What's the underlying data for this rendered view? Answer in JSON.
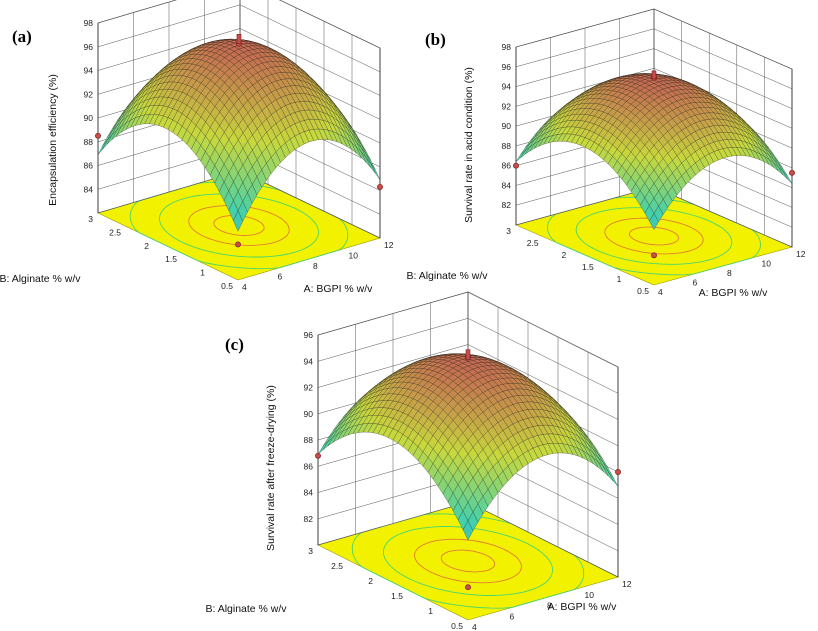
{
  "figure": {
    "description_free": true,
    "colors": {
      "floor": "#f2f200",
      "contour_outer": "#39d27a",
      "contour_inner": "#e0703a",
      "wall_grid": "#555555",
      "design_point": "#c94b4b",
      "surface_low": "#4a58d8",
      "surface_mid": "#3fd0b0",
      "surface_high": "#c46a52"
    }
  },
  "chart_data": [
    {
      "panel": "(a)",
      "type": "surface",
      "title": "",
      "zlabel": "Encapsulation efficiency (%)",
      "xlabel": "A: BGPI % w/v",
      "ylabel": "B: Alginate % w/v",
      "x_ticks": [
        "4",
        "6",
        "8",
        "10",
        "12"
      ],
      "y_ticks": [
        "0.5",
        "1",
        "1.5",
        "2",
        "2.5",
        "3"
      ],
      "z_ticks": [
        "84",
        "86",
        "88",
        "90",
        "92",
        "94",
        "96",
        "98"
      ],
      "xlim": [
        4,
        12
      ],
      "ylim": [
        0.5,
        3
      ],
      "zlim": [
        82,
        98
      ],
      "optimum": {
        "x": 8,
        "y": 1.75,
        "z": 97.2
      },
      "edge_min": 86.5,
      "design_points_z": [
        88.5,
        86.3,
        85,
        97.3
      ]
    },
    {
      "panel": "(b)",
      "type": "surface",
      "title": "",
      "zlabel": "Survival rate in acid condition (%)",
      "xlabel": "A: BGPI % w/v",
      "ylabel": "B: Alginate % w/v",
      "x_ticks": [
        "4",
        "6",
        "8",
        "10",
        "12"
      ],
      "y_ticks": [
        "0.5",
        "1",
        "1.5",
        "2",
        "2.5",
        "3"
      ],
      "z_ticks": [
        "82",
        "84",
        "86",
        "88",
        "90",
        "92",
        "94",
        "96",
        "98"
      ],
      "xlim": [
        4,
        12
      ],
      "ylim": [
        0.5,
        3
      ],
      "zlim": [
        80,
        98
      ],
      "optimum": {
        "x": 8,
        "y": 1.75,
        "z": 95.8
      },
      "edge_min": 86,
      "design_points_z": [
        86,
        87.5,
        83,
        96
      ]
    },
    {
      "panel": "(c)",
      "type": "surface",
      "title": "",
      "zlabel": "Survival rate after freeze-drying (%)",
      "xlabel": "A: BGPI % w/v",
      "ylabel": "B: Alginate % w/v",
      "x_ticks": [
        "4",
        "6",
        "8",
        "10",
        "12"
      ],
      "y_ticks": [
        "0.5",
        "1",
        "1.5",
        "2",
        "2.5",
        "3"
      ],
      "z_ticks": [
        "82",
        "84",
        "86",
        "88",
        "90",
        "92",
        "94",
        "96"
      ],
      "xlim": [
        4,
        12
      ],
      "ylim": [
        0.5,
        3
      ],
      "zlim": [
        80,
        96
      ],
      "optimum": {
        "x": 8,
        "y": 1.75,
        "z": 95.2
      },
      "edge_min": 86.5,
      "design_points_z": [
        86.8,
        88,
        82.5,
        95.5
      ]
    }
  ]
}
